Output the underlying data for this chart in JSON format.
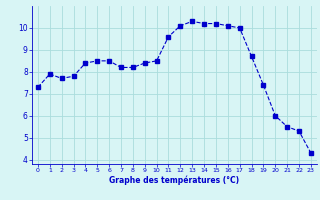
{
  "hours": [
    0,
    1,
    2,
    3,
    4,
    5,
    6,
    7,
    8,
    9,
    10,
    11,
    12,
    13,
    14,
    15,
    16,
    17,
    18,
    19,
    20,
    21,
    22,
    23
  ],
  "temperatures": [
    7.3,
    7.9,
    7.7,
    7.8,
    8.4,
    8.5,
    8.5,
    8.2,
    8.2,
    8.4,
    8.5,
    9.6,
    10.1,
    10.3,
    10.2,
    10.2,
    10.1,
    10.0,
    8.7,
    7.4,
    6.0,
    5.5,
    5.3,
    4.3
  ],
  "line_color": "#0000cc",
  "marker": "s",
  "marker_size": 2.2,
  "bg_color": "#d8f5f5",
  "grid_color": "#aadddd",
  "xlabel": "Graphe des températures (°C)",
  "xlabel_color": "#0000cc",
  "tick_color": "#0000cc",
  "xlim": [
    -0.5,
    23.5
  ],
  "ylim": [
    3.8,
    11.0
  ],
  "yticks": [
    4,
    5,
    6,
    7,
    8,
    9,
    10
  ],
  "xticks": [
    0,
    1,
    2,
    3,
    4,
    5,
    6,
    7,
    8,
    9,
    10,
    11,
    12,
    13,
    14,
    15,
    16,
    17,
    18,
    19,
    20,
    21,
    22,
    23
  ]
}
